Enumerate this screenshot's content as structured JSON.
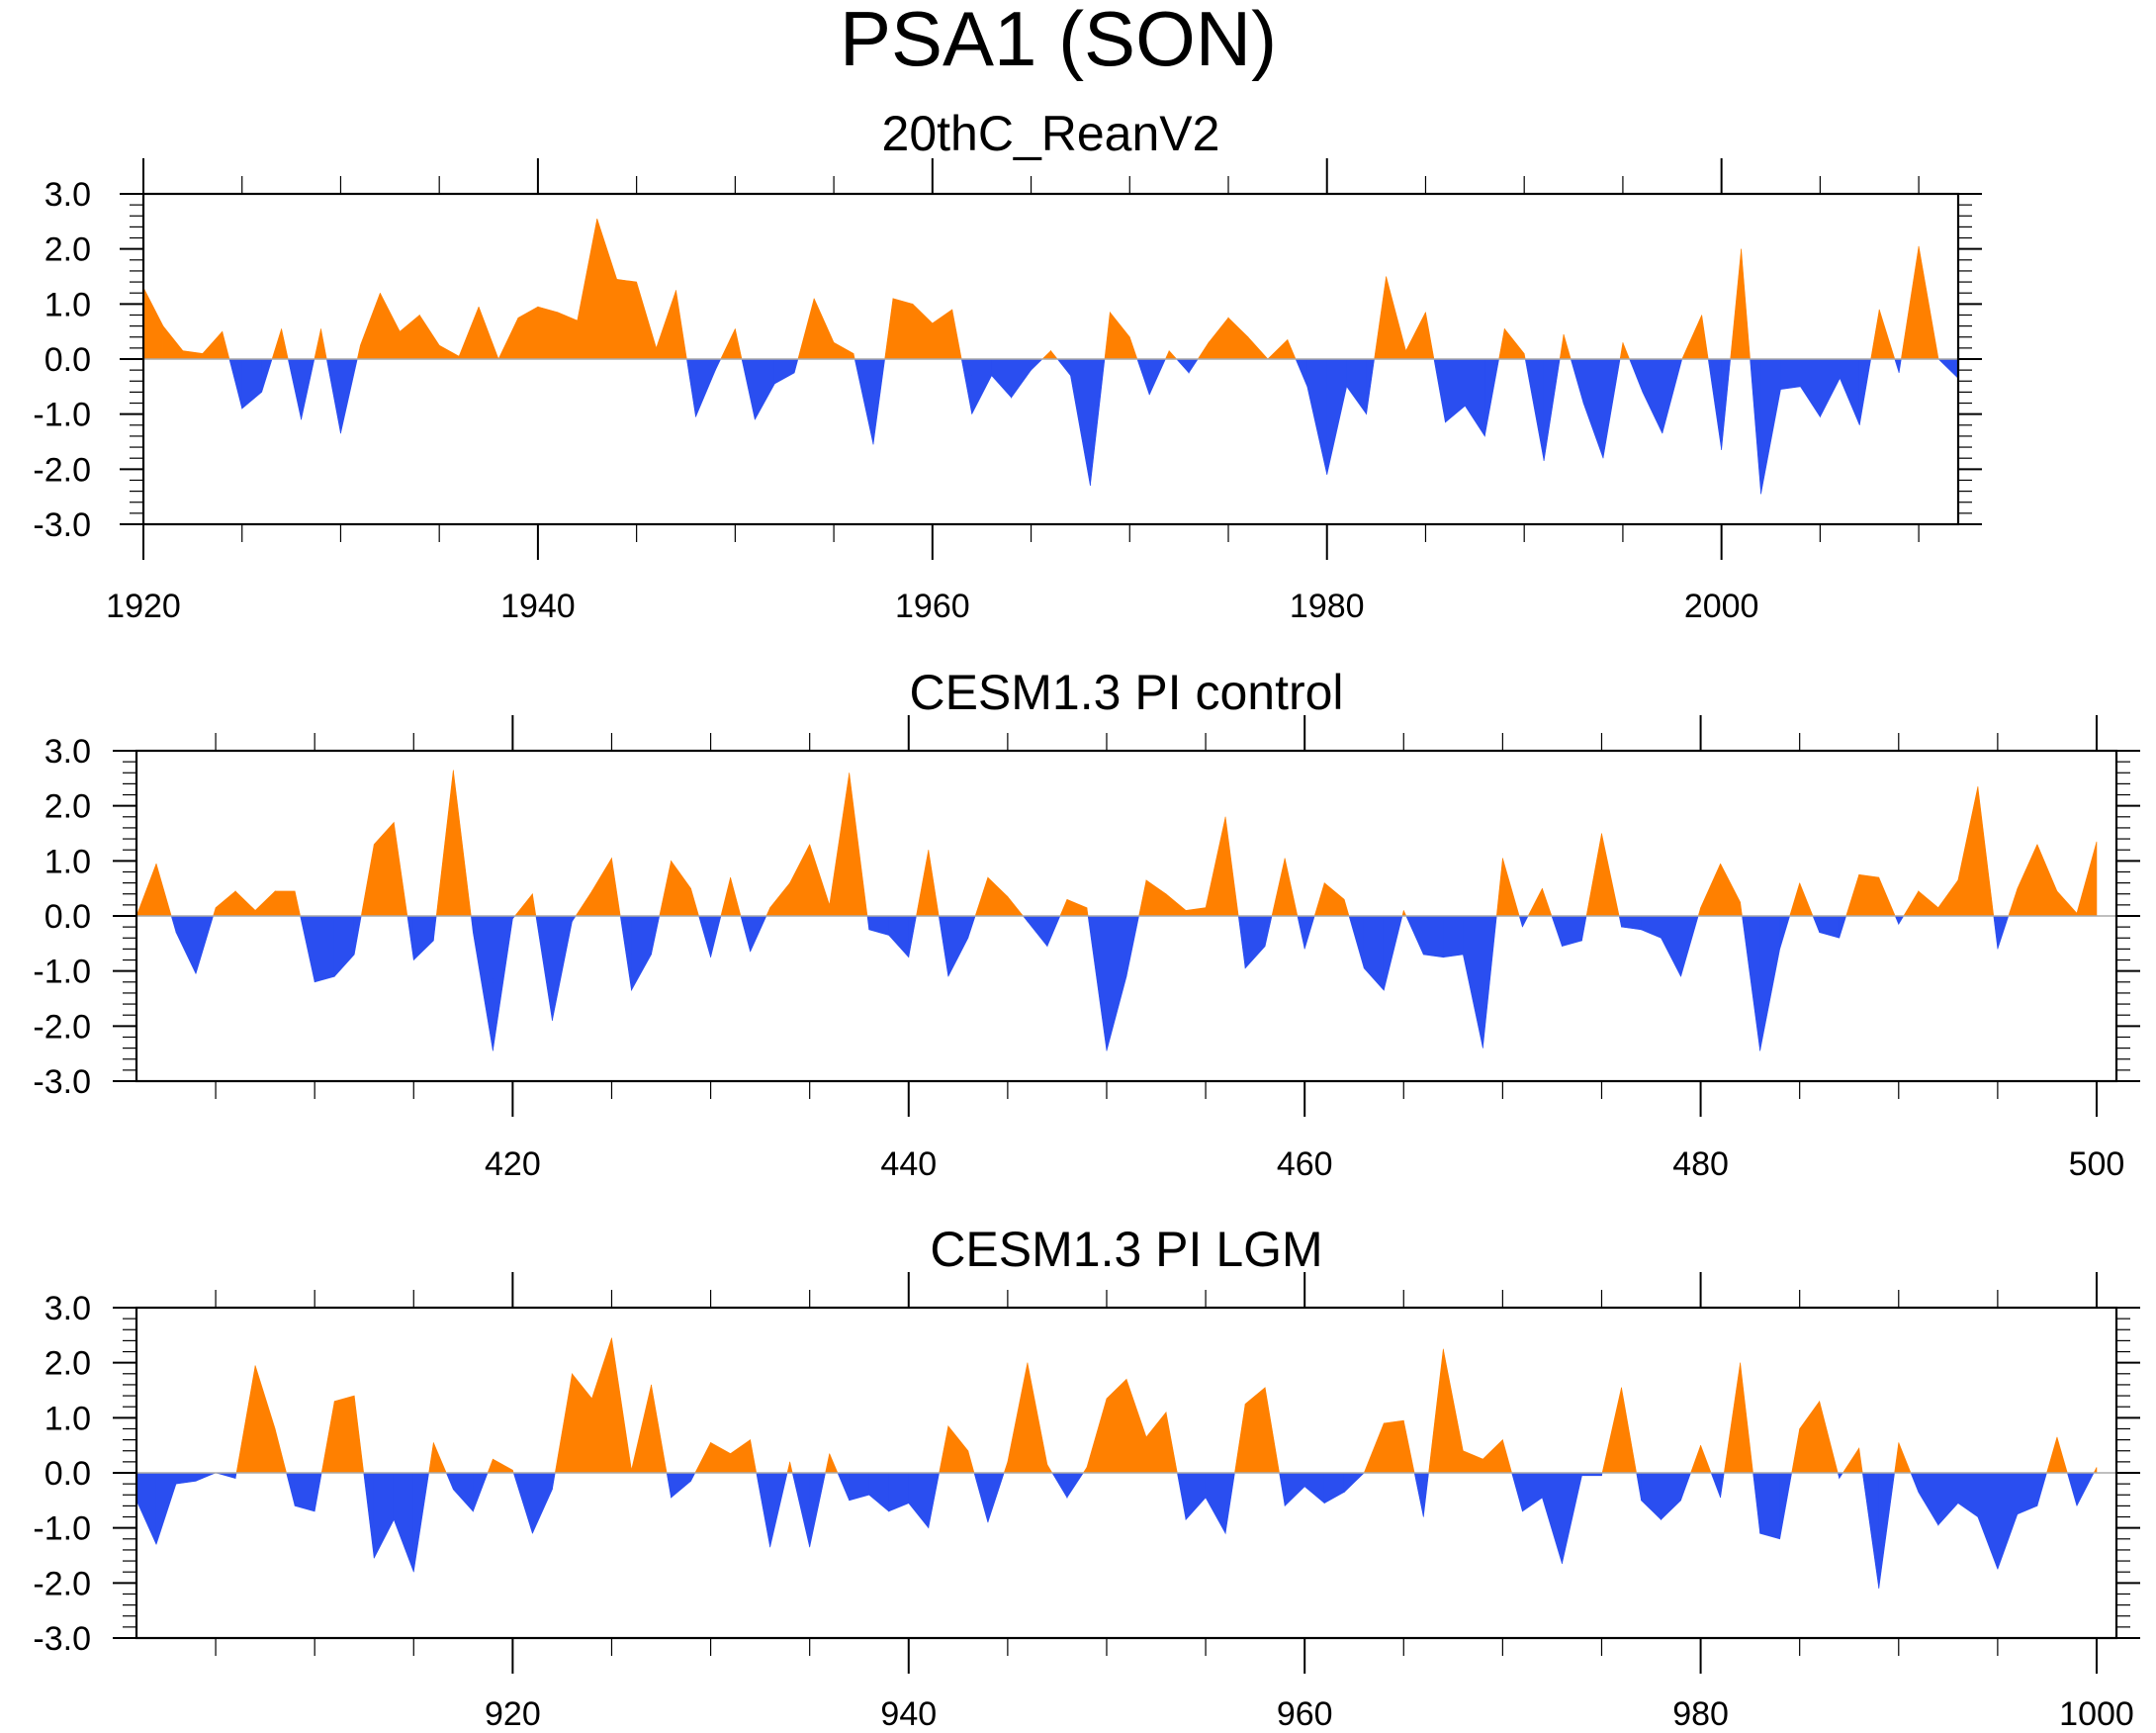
{
  "title": "PSA1 (SON)",
  "colors": {
    "positive": "#ff8000",
    "negative": "#2a4ef0",
    "zero_line": "#aaaaaa"
  },
  "chart_data": [
    {
      "type": "area",
      "title": "20thC_ReanV2",
      "xlim": [
        1920,
        2012
      ],
      "ylim": [
        -3,
        3
      ],
      "yticks": [
        "3.0",
        "2.0",
        "1.0",
        "0.0",
        "-1.0",
        "-2.0",
        "-3.0"
      ],
      "xticks": [
        "1920",
        "1940",
        "1960",
        "1980",
        "2000"
      ],
      "x_start": 1920,
      "values": [
        1.3,
        0.6,
        0.15,
        0.1,
        0.5,
        -0.9,
        -0.6,
        0.55,
        -1.1,
        0.55,
        -1.35,
        0.25,
        1.2,
        0.5,
        0.8,
        0.25,
        0.05,
        0.95,
        0.0,
        0.75,
        0.95,
        0.85,
        0.7,
        2.55,
        1.45,
        1.4,
        0.2,
        1.25,
        -1.05,
        -0.2,
        0.55,
        -1.1,
        -0.45,
        -0.25,
        1.1,
        0.3,
        0.1,
        -1.55,
        1.1,
        1.0,
        0.65,
        0.9,
        -1.0,
        -0.3,
        -0.7,
        -0.2,
        0.15,
        -0.3,
        -2.3,
        0.85,
        0.4,
        -0.65,
        0.15,
        -0.25,
        0.3,
        0.75,
        0.4,
        0.0,
        0.35,
        -0.5,
        -2.1,
        -0.5,
        -1.0,
        1.5,
        0.15,
        0.85,
        -1.15,
        -0.85,
        -1.4,
        0.55,
        0.1,
        -1.85,
        0.45,
        -0.8,
        -1.8,
        0.3,
        -0.6,
        -1.35,
        0.0,
        0.8,
        -1.65,
        2.0,
        -2.45,
        -0.55,
        -0.5,
        -1.05,
        -0.35,
        -1.2,
        0.9,
        -0.25,
        2.05,
        0.0,
        -0.35
      ]
    },
    {
      "type": "area",
      "title": "CESM1.3 PI control",
      "xlim": [
        401,
        501
      ],
      "ylim": [
        -3,
        3
      ],
      "yticks": [
        "3.0",
        "2.0",
        "1.0",
        "0.0",
        "-1.0",
        "-2.0",
        "-3.0"
      ],
      "xticks": [
        "420",
        "440",
        "460",
        "480",
        "500"
      ],
      "x_start": 401,
      "values": [
        0.0,
        0.95,
        -0.3,
        -1.05,
        0.15,
        0.45,
        0.1,
        0.45,
        0.45,
        -1.2,
        -1.1,
        -0.7,
        1.3,
        1.7,
        -0.8,
        -0.45,
        2.65,
        -0.3,
        -2.45,
        -0.05,
        0.4,
        -1.9,
        -0.1,
        0.45,
        1.05,
        -1.35,
        -0.7,
        1.0,
        0.5,
        -0.75,
        0.7,
        -0.65,
        0.15,
        0.6,
        1.3,
        0.2,
        2.6,
        -0.25,
        -0.35,
        -0.75,
        1.2,
        -1.1,
        -0.4,
        0.7,
        0.35,
        -0.1,
        -0.55,
        0.3,
        0.15,
        -2.45,
        -1.1,
        0.65,
        0.4,
        0.1,
        0.15,
        1.8,
        -0.95,
        -0.55,
        1.05,
        -0.6,
        0.6,
        0.3,
        -0.95,
        -1.35,
        0.1,
        -0.7,
        -0.75,
        -0.7,
        -2.4,
        1.05,
        -0.2,
        0.5,
        -0.55,
        -0.45,
        1.5,
        -0.2,
        -0.25,
        -0.4,
        -1.1,
        0.15,
        0.95,
        0.25,
        -2.45,
        -0.6,
        0.6,
        -0.3,
        -0.4,
        0.75,
        0.7,
        -0.15,
        0.45,
        0.15,
        0.65,
        2.35,
        -0.6,
        0.5,
        1.3,
        0.45,
        0.05,
        1.35
      ]
    },
    {
      "type": "area",
      "title": "CESM1.3 PI LGM",
      "xlim": [
        901,
        1001
      ],
      "ylim": [
        -3,
        3
      ],
      "yticks": [
        "3.0",
        "2.0",
        "1.0",
        "0.0",
        "-1.0",
        "-2.0",
        "-3.0"
      ],
      "xticks": [
        "920",
        "940",
        "960",
        "980",
        "1000"
      ],
      "x_start": 901,
      "values": [
        -0.5,
        -1.3,
        -0.2,
        -0.15,
        0.0,
        -0.1,
        1.95,
        0.8,
        -0.6,
        -0.7,
        1.3,
        1.4,
        -1.55,
        -0.85,
        -1.8,
        0.55,
        -0.3,
        -0.7,
        0.25,
        0.05,
        -1.1,
        -0.3,
        1.8,
        1.35,
        2.45,
        0.05,
        1.6,
        -0.45,
        -0.15,
        0.55,
        0.35,
        0.6,
        -1.35,
        0.2,
        -1.35,
        0.35,
        -0.5,
        -0.4,
        -0.7,
        -0.55,
        -1.0,
        0.85,
        0.4,
        -0.9,
        0.2,
        2.0,
        0.15,
        -0.45,
        0.1,
        1.35,
        1.7,
        0.65,
        1.1,
        -0.85,
        -0.45,
        -1.1,
        1.25,
        1.55,
        -0.6,
        -0.25,
        -0.55,
        -0.35,
        0.0,
        0.9,
        0.95,
        -0.8,
        2.25,
        0.4,
        0.25,
        0.6,
        -0.7,
        -0.45,
        -1.65,
        -0.05,
        -0.05,
        1.55,
        -0.5,
        -0.85,
        -0.5,
        0.5,
        -0.45,
        2.0,
        -1.1,
        -1.2,
        0.8,
        1.3,
        -0.1,
        0.45,
        -2.1,
        0.55,
        -0.35,
        -0.95,
        -0.55,
        -0.8,
        -1.75,
        -0.75,
        -0.6,
        0.65,
        -0.6,
        0.1
      ]
    }
  ]
}
